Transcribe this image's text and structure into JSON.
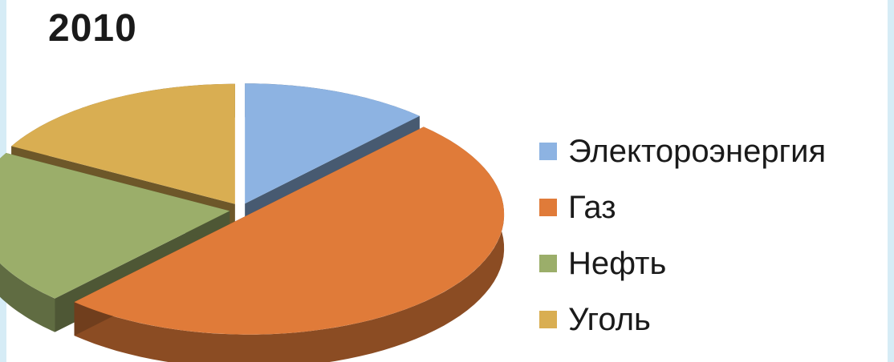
{
  "chart_data": {
    "type": "pie",
    "title": "2010",
    "slices": [
      {
        "label": "Электороэнергия",
        "value": 12,
        "color": "#8db3e2",
        "exploded": true
      },
      {
        "label": "Газ",
        "value": 50,
        "color": "#e07b39",
        "exploded": true
      },
      {
        "label": "Нефть",
        "value": 21,
        "color": "#9bae6a",
        "exploded": true
      },
      {
        "label": "Уголь",
        "value": 17,
        "color": "#d9ae52",
        "exploded": true
      }
    ],
    "legend_position": "right",
    "style": "3d-exploded"
  }
}
